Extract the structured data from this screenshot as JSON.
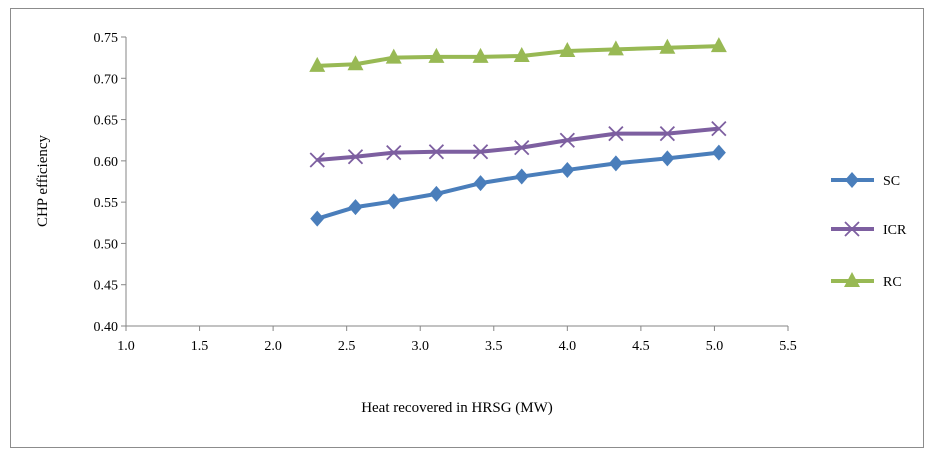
{
  "chart_data": {
    "type": "line",
    "title": "",
    "xlabel": "Heat recovered in HRSG (MW)",
    "ylabel": "CHP efficiency",
    "xlim": [
      1.0,
      5.5
    ],
    "ylim": [
      0.4,
      0.75
    ],
    "xticks": [
      "1.0",
      "1.5",
      "2.0",
      "2.5",
      "3.0",
      "3.5",
      "4.0",
      "4.5",
      "5.0",
      "5.5"
    ],
    "yticks": [
      "0.40",
      "0.45",
      "0.50",
      "0.55",
      "0.60",
      "0.65",
      "0.70",
      "0.75"
    ],
    "grid": false,
    "legend_position": "right",
    "x": [
      2.3,
      2.56,
      2.82,
      3.11,
      3.41,
      3.69,
      4.0,
      4.33,
      4.68,
      5.03
    ],
    "series": [
      {
        "name": "SC",
        "color": "#4a7ebb",
        "marker": "diamond",
        "values": [
          0.53,
          0.544,
          0.551,
          0.56,
          0.573,
          0.581,
          0.589,
          0.597,
          0.603,
          0.61
        ]
      },
      {
        "name": "ICR",
        "color": "#7d5fa0",
        "marker": "x",
        "values": [
          0.601,
          0.605,
          0.61,
          0.611,
          0.611,
          0.616,
          0.625,
          0.633,
          0.633,
          0.639
        ]
      },
      {
        "name": "RC",
        "color": "#98b954",
        "marker": "triangle",
        "values": [
          0.715,
          0.717,
          0.725,
          0.726,
          0.726,
          0.727,
          0.733,
          0.735,
          0.737,
          0.739
        ]
      }
    ]
  }
}
